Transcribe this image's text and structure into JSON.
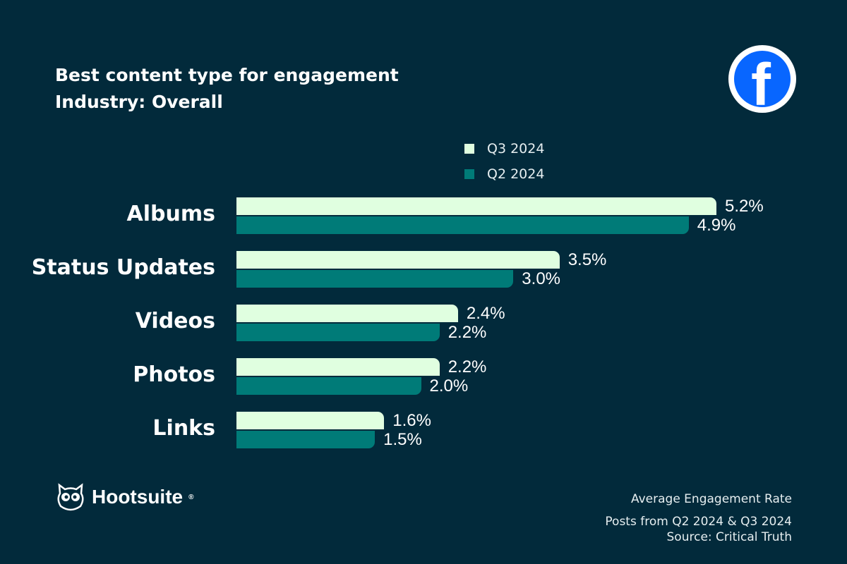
{
  "chart_data": {
    "type": "bar",
    "orientation": "horizontal",
    "title": "Best content type for engagement",
    "subtitle": "Industry: Overall",
    "categories": [
      "Albums",
      "Status Updates",
      "Videos",
      "Photos",
      "Links"
    ],
    "series": [
      {
        "name": "Q3 2024",
        "values": [
          5.2,
          3.5,
          2.4,
          2.2,
          1.6
        ],
        "labels": [
          "5.2%",
          "3.5%",
          "2.4%",
          "2.2%",
          "1.6%"
        ],
        "color": "#e0ffe0"
      },
      {
        "name": "Q2 2024",
        "values": [
          4.9,
          3.0,
          2.2,
          2.0,
          1.5
        ],
        "labels": [
          "4.9%",
          "3.0%",
          "2.2%",
          "2.0%",
          "1.5%"
        ],
        "color": "#007b78"
      }
    ],
    "legend": "top-right",
    "grid": false
  },
  "brand": {
    "logo_text": "Hootsuite",
    "platform_icon": "facebook-icon",
    "background": "#022a3b"
  },
  "footer": {
    "line1": "Average Engagement Rate",
    "line2": "Posts from Q2 2024 & Q3 2024",
    "line3": "Source: Critical Truth"
  }
}
